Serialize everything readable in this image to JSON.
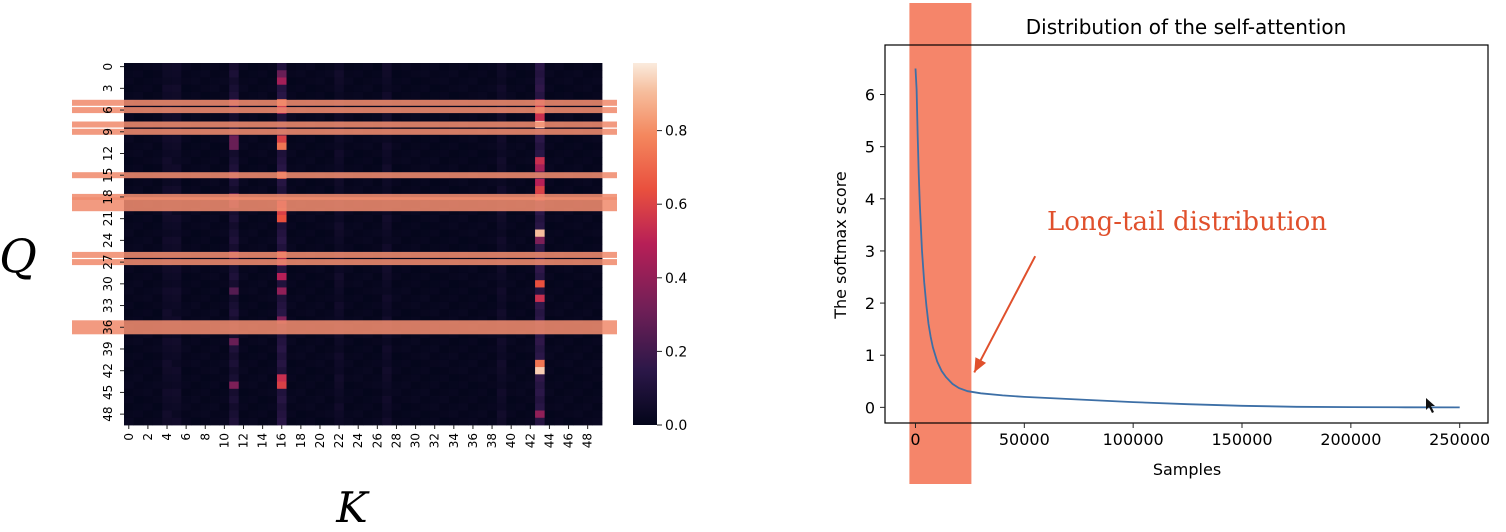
{
  "chart_data": [
    {
      "type": "heatmap",
      "title": "",
      "xlabel": "K",
      "ylabel": "Q",
      "rows": 50,
      "cols": 50,
      "x_tick_labels": [
        "0",
        "2",
        "4",
        "6",
        "8",
        "10",
        "12",
        "14",
        "16",
        "18",
        "20",
        "22",
        "24",
        "26",
        "28",
        "30",
        "32",
        "34",
        "36",
        "38",
        "40",
        "42",
        "44",
        "46",
        "48"
      ],
      "y_tick_labels": [
        "0",
        "3",
        "6",
        "9",
        "12",
        "15",
        "18",
        "21",
        "24",
        "27",
        "30",
        "33",
        "36",
        "39",
        "42",
        "45",
        "48"
      ],
      "colorbar": {
        "min": 0.0,
        "max": 1.0,
        "ticks": [
          0.0,
          0.2,
          0.4,
          0.6,
          0.8
        ],
        "tick_labels": [
          "0.0",
          "0.2",
          "0.4",
          "0.6",
          "0.8"
        ]
      },
      "dominant_columns": [
        {
          "col": 43,
          "peak_rows": {
            "5": 0.45,
            "6": 0.7,
            "7": 0.55,
            "8": 0.98,
            "13": 0.55,
            "14": 0.45,
            "16": 0.5,
            "17": 0.6,
            "18": 0.55,
            "23": 0.92,
            "24": 0.35,
            "30": 0.65,
            "32": 0.55,
            "41": 0.75,
            "42": 0.95,
            "48": 0.4
          }
        },
        {
          "col": 16,
          "peak_rows": {
            "1": 0.3,
            "2": 0.45,
            "5": 0.75,
            "6": 0.5,
            "10": 0.6,
            "11": 0.75,
            "15": 0.7,
            "19": 0.55,
            "20": 0.6,
            "21": 0.65,
            "26": 0.6,
            "27": 0.4,
            "29": 0.5,
            "31": 0.4,
            "35": 0.35,
            "43": 0.55,
            "44": 0.6
          }
        },
        {
          "col": 11,
          "peak_rows": {
            "5": 0.3,
            "10": 0.3,
            "11": 0.3,
            "15": 0.25,
            "18": 0.3,
            "19": 0.25,
            "26": 0.3,
            "31": 0.25,
            "38": 0.3,
            "44": 0.35
          }
        }
      ],
      "highlighted_rows": [
        5,
        6,
        8,
        9,
        15,
        18,
        19,
        26,
        27,
        36
      ],
      "highlight_color": "#f08c6e"
    },
    {
      "type": "line",
      "title": "Distribution of the self-attention",
      "xlabel": "Samples",
      "ylabel": "The softmax score",
      "xlim": [
        -14000,
        263000
      ],
      "ylim": [
        -0.3,
        6.95
      ],
      "x_ticks": [
        0,
        50000,
        100000,
        150000,
        200000,
        250000
      ],
      "y_ticks": [
        0,
        1,
        2,
        3,
        4,
        5,
        6
      ],
      "series": [
        {
          "name": "softmax score",
          "color": "#3d6fa6",
          "x": [
            0,
            500,
            1000,
            1500,
            2000,
            3000,
            4000,
            5000,
            6000,
            7000,
            8000,
            10000,
            12000,
            14000,
            17000,
            20000,
            24000,
            30000,
            40000,
            50000,
            75000,
            100000,
            125000,
            150000,
            175000,
            200000,
            225000,
            250000
          ],
          "y": [
            6.5,
            6.1,
            5.2,
            4.5,
            3.9,
            3.0,
            2.4,
            1.95,
            1.6,
            1.35,
            1.15,
            0.88,
            0.7,
            0.58,
            0.45,
            0.37,
            0.31,
            0.27,
            0.23,
            0.2,
            0.15,
            0.1,
            0.06,
            0.03,
            0.01,
            0.005,
            0.002,
            0.0
          ]
        }
      ],
      "highlight_region": {
        "x_from": -2800,
        "x_to": 25700,
        "color": "#f5856a"
      },
      "annotation": {
        "text": "Long-tail distribution",
        "color": "#e0502c",
        "arrow_from": [
          55000,
          2.9
        ],
        "arrow_to": [
          27000,
          0.67
        ]
      }
    }
  ]
}
